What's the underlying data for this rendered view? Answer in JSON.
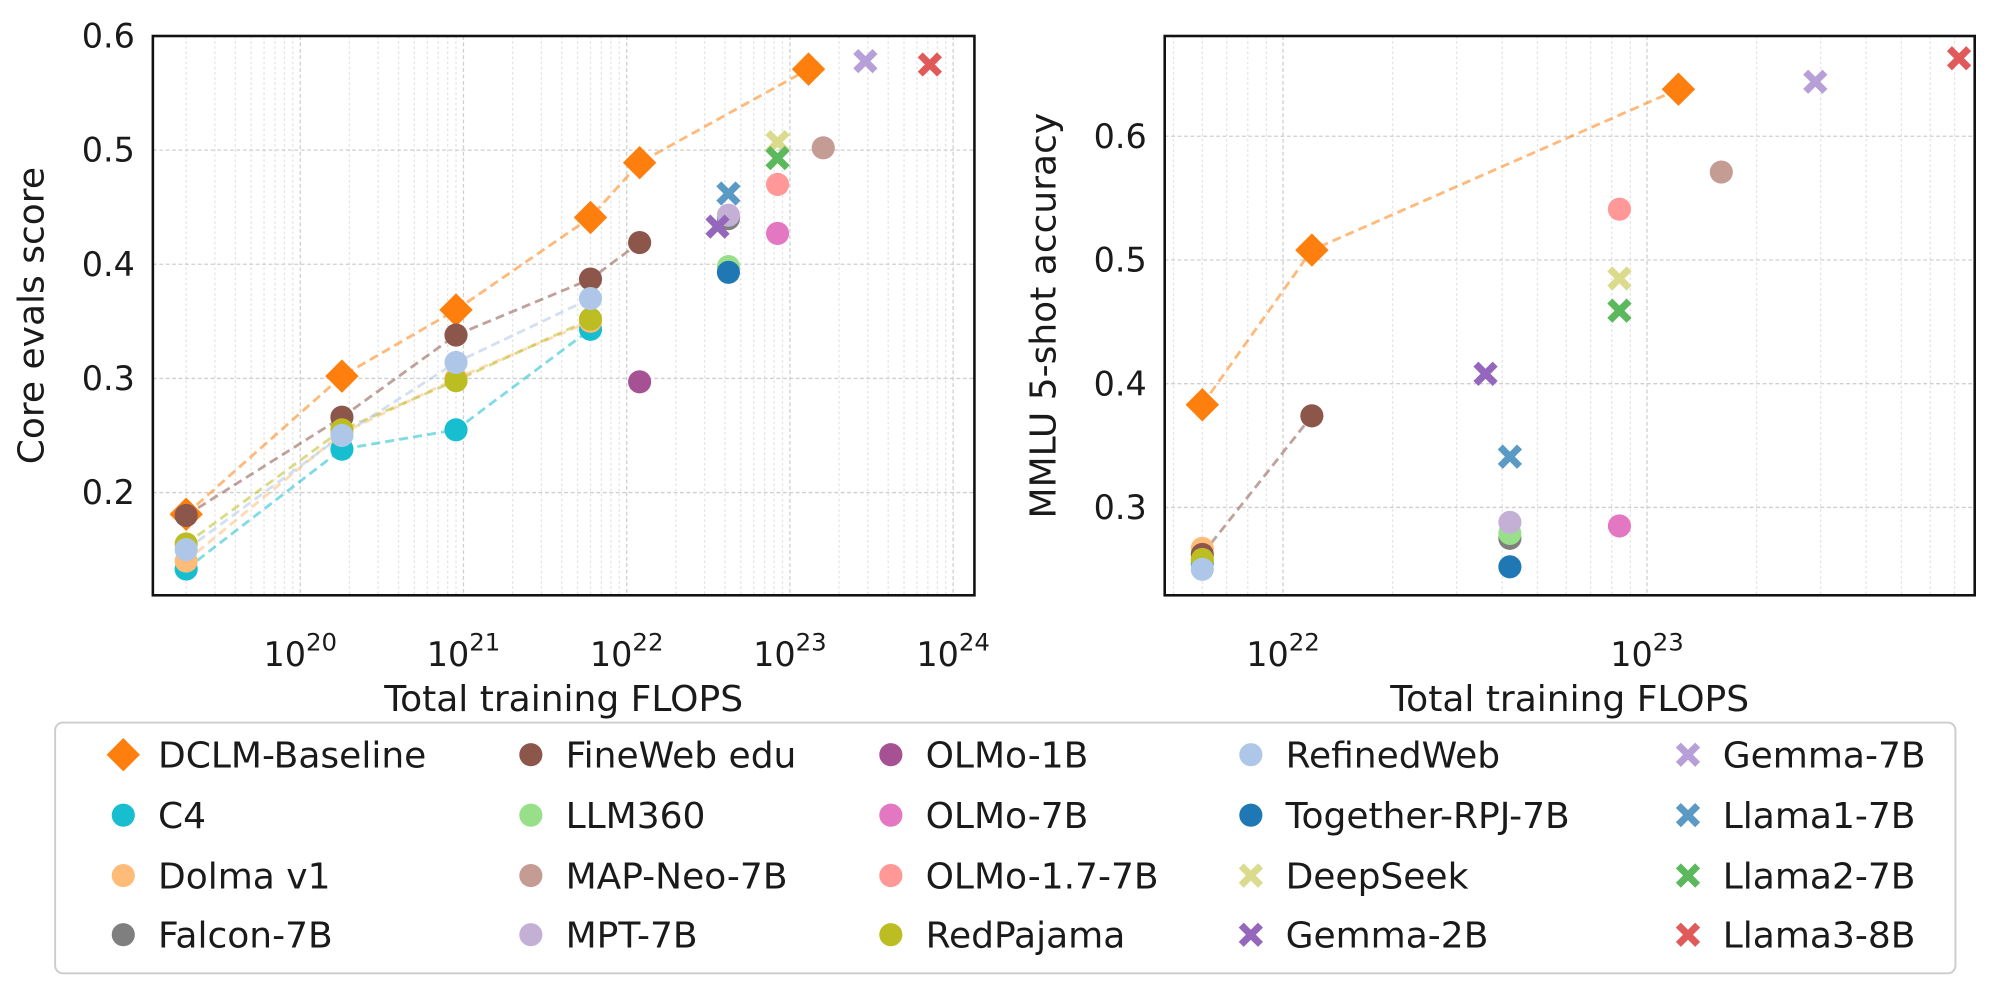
{
  "chart_data": [
    {
      "type": "scatter",
      "xlabel": "Total training FLOPS",
      "ylabel": "Core evals score",
      "xscale": "log",
      "xlim": [
        1.25e+19,
        1.35e+24
      ],
      "ylim": [
        0.11,
        0.6
      ],
      "xticks": [
        {
          "value": 1e+20,
          "label": "10^20"
        },
        {
          "value": 1e+21,
          "label": "10^21"
        },
        {
          "value": 1e+22,
          "label": "10^22"
        },
        {
          "value": 1e+23,
          "label": "10^23"
        },
        {
          "value": 1e+24,
          "label": "10^24"
        }
      ],
      "yticks": [
        0.2,
        0.3,
        0.4,
        0.5,
        0.6
      ],
      "grid": true,
      "series": [
        {
          "name": "DCLM-Baseline",
          "color": "#ff7f0e",
          "marker": "diamond",
          "line": true,
          "x": [
            2e+19,
            1.8e+20,
            9e+20,
            6e+21,
            1.2e+22,
            1.3e+23
          ],
          "values": [
            0.181,
            0.302,
            0.36,
            0.441,
            0.489,
            0.571
          ]
        },
        {
          "name": "C4",
          "color": "#17becf",
          "marker": "circle",
          "line": true,
          "x": [
            2e+19,
            1.8e+20,
            9e+20,
            6e+21
          ],
          "values": [
            0.133,
            0.238,
            0.255,
            0.343
          ]
        },
        {
          "name": "Dolma v1",
          "color": "#ffbb78",
          "marker": "circle",
          "line": true,
          "x": [
            2e+19,
            1.8e+20,
            9e+20,
            6e+21
          ],
          "values": [
            0.14,
            0.252,
            0.3,
            0.35
          ]
        },
        {
          "name": "Falcon-7B",
          "color": "#7f7f7f",
          "marker": "circle",
          "line": false,
          "x": [
            4.2e+22
          ],
          "values": [
            0.44
          ]
        },
        {
          "name": "FineWeb edu",
          "color": "#8c564b",
          "marker": "circle",
          "line": true,
          "x": [
            2e+19,
            1.8e+20,
            9e+20,
            6e+21,
            1.2e+22
          ],
          "values": [
            0.18,
            0.266,
            0.338,
            0.387,
            0.419
          ]
        },
        {
          "name": "LLM360",
          "color": "#98df8a",
          "marker": "circle",
          "line": false,
          "x": [
            4.2e+22
          ],
          "values": [
            0.398
          ]
        },
        {
          "name": "MAP-Neo-7B",
          "color": "#c49c94",
          "marker": "circle",
          "line": false,
          "x": [
            1.6e+23
          ],
          "values": [
            0.502
          ]
        },
        {
          "name": "MPT-7B",
          "color": "#c5b0d5",
          "marker": "circle",
          "line": false,
          "x": [
            4.2e+22
          ],
          "values": [
            0.443
          ]
        },
        {
          "name": "OLMo-1B",
          "color": "#a55194",
          "marker": "circle",
          "line": false,
          "x": [
            1.2e+22
          ],
          "values": [
            0.297
          ]
        },
        {
          "name": "OLMo-7B",
          "color": "#e377c2",
          "marker": "circle",
          "line": false,
          "x": [
            8.4e+22
          ],
          "values": [
            0.427
          ]
        },
        {
          "name": "OLMo-1.7-7B",
          "color": "#ff9896",
          "marker": "circle",
          "line": false,
          "x": [
            8.4e+22
          ],
          "values": [
            0.47
          ]
        },
        {
          "name": "RedPajama",
          "color": "#bcbd22",
          "marker": "circle",
          "line": true,
          "x": [
            2e+19,
            1.8e+20,
            9e+20,
            6e+21
          ],
          "values": [
            0.155,
            0.255,
            0.298,
            0.352
          ]
        },
        {
          "name": "RefinedWeb",
          "color": "#aec7e8",
          "marker": "circle",
          "line": true,
          "x": [
            2e+19,
            1.8e+20,
            9e+20,
            6e+21
          ],
          "values": [
            0.15,
            0.25,
            0.314,
            0.37
          ]
        },
        {
          "name": "Together-RPJ-7B",
          "color": "#1f77b4",
          "marker": "circle",
          "line": false,
          "x": [
            4.2e+22
          ],
          "values": [
            0.393
          ]
        },
        {
          "name": "DeepSeek",
          "color": "#dbdb8d",
          "marker": "x",
          "line": false,
          "x": [
            8.4e+22
          ],
          "values": [
            0.507
          ]
        },
        {
          "name": "Gemma-2B",
          "color": "#9467bd",
          "marker": "x",
          "line": false,
          "x": [
            3.6e+22
          ],
          "values": [
            0.433
          ]
        },
        {
          "name": "Gemma-7B",
          "color": "#b79fd8",
          "marker": "x",
          "line": false,
          "x": [
            2.9e+23
          ],
          "values": [
            0.578
          ]
        },
        {
          "name": "Llama1-7B",
          "color": "#5b9ac4",
          "marker": "x",
          "line": false,
          "x": [
            4.2e+22
          ],
          "values": [
            0.462
          ]
        },
        {
          "name": "Llama2-7B",
          "color": "#5cb85c",
          "marker": "x",
          "line": false,
          "x": [
            8.4e+22
          ],
          "values": [
            0.493
          ]
        },
        {
          "name": "Llama3-8B",
          "color": "#e05a5a",
          "marker": "x",
          "line": false,
          "x": [
            7.2e+23
          ],
          "values": [
            0.575
          ]
        }
      ]
    },
    {
      "type": "scatter",
      "xlabel": "Total training FLOPS",
      "ylabel": "MMLU 5-shot accuracy",
      "xscale": "log",
      "xlim": [
        4.73e+21,
        7.95e+23
      ],
      "ylim": [
        0.229,
        0.681
      ],
      "xticks": [
        {
          "value": 1e+22,
          "label": "10^22"
        },
        {
          "value": 1e+23,
          "label": "10^23"
        }
      ],
      "yticks": [
        0.3,
        0.4,
        0.5,
        0.6
      ],
      "grid": true,
      "series": [
        {
          "name": "DCLM-Baseline",
          "color": "#ff7f0e",
          "marker": "diamond",
          "line": true,
          "x": [
            6e+21,
            1.2e+22,
            1.22e+23
          ],
          "values": [
            0.383,
            0.508,
            0.638
          ]
        },
        {
          "name": "C4",
          "color": "#17becf",
          "marker": "circle",
          "line": false,
          "x": [
            6e+21
          ],
          "values": [
            0.255
          ]
        },
        {
          "name": "Dolma v1",
          "color": "#ffbb78",
          "marker": "circle",
          "line": false,
          "x": [
            6e+21
          ],
          "values": [
            0.267
          ]
        },
        {
          "name": "Falcon-7B",
          "color": "#7f7f7f",
          "marker": "circle",
          "line": false,
          "x": [
            4.2e+22
          ],
          "values": [
            0.275
          ]
        },
        {
          "name": "FineWeb edu",
          "color": "#8c564b",
          "marker": "circle",
          "line": true,
          "x": [
            6e+21,
            1.2e+22
          ],
          "values": [
            0.262,
            0.374
          ]
        },
        {
          "name": "LLM360",
          "color": "#98df8a",
          "marker": "circle",
          "line": false,
          "x": [
            4.2e+22
          ],
          "values": [
            0.279
          ]
        },
        {
          "name": "MAP-Neo-7B",
          "color": "#c49c94",
          "marker": "circle",
          "line": false,
          "x": [
            1.6e+23
          ],
          "values": [
            0.571
          ]
        },
        {
          "name": "MPT-7B",
          "color": "#c5b0d5",
          "marker": "circle",
          "line": false,
          "x": [
            4.2e+22
          ],
          "values": [
            0.288
          ]
        },
        {
          "name": "OLMo-7B",
          "color": "#e377c2",
          "marker": "circle",
          "line": false,
          "x": [
            8.4e+22
          ],
          "values": [
            0.285
          ]
        },
        {
          "name": "OLMo-1.7-7B",
          "color": "#ff9896",
          "marker": "circle",
          "line": false,
          "x": [
            8.4e+22
          ],
          "values": [
            0.541
          ]
        },
        {
          "name": "RedPajama",
          "color": "#bcbd22",
          "marker": "circle",
          "line": false,
          "x": [
            6e+21
          ],
          "values": [
            0.258
          ]
        },
        {
          "name": "RefinedWeb",
          "color": "#aec7e8",
          "marker": "circle",
          "line": false,
          "x": [
            6e+21
          ],
          "values": [
            0.25
          ]
        },
        {
          "name": "Together-RPJ-7B",
          "color": "#1f77b4",
          "marker": "circle",
          "line": false,
          "x": [
            4.2e+22
          ],
          "values": [
            0.252
          ]
        },
        {
          "name": "DeepSeek",
          "color": "#dbdb8d",
          "marker": "x",
          "line": false,
          "x": [
            8.4e+22
          ],
          "values": [
            0.485
          ]
        },
        {
          "name": "Gemma-2B",
          "color": "#9467bd",
          "marker": "x",
          "line": false,
          "x": [
            3.6e+22
          ],
          "values": [
            0.408
          ]
        },
        {
          "name": "Gemma-7B",
          "color": "#b79fd8",
          "marker": "x",
          "line": false,
          "x": [
            2.9e+23
          ],
          "values": [
            0.644
          ]
        },
        {
          "name": "Llama1-7B",
          "color": "#5b9ac4",
          "marker": "x",
          "line": false,
          "x": [
            4.2e+22
          ],
          "values": [
            0.341
          ]
        },
        {
          "name": "Llama2-7B",
          "color": "#5cb85c",
          "marker": "x",
          "line": false,
          "x": [
            8.4e+22
          ],
          "values": [
            0.459
          ]
        },
        {
          "name": "Llama3-8B",
          "color": "#e05a5a",
          "marker": "x",
          "line": false,
          "x": [
            7.2e+23
          ],
          "values": [
            0.663
          ]
        }
      ]
    }
  ]
}
